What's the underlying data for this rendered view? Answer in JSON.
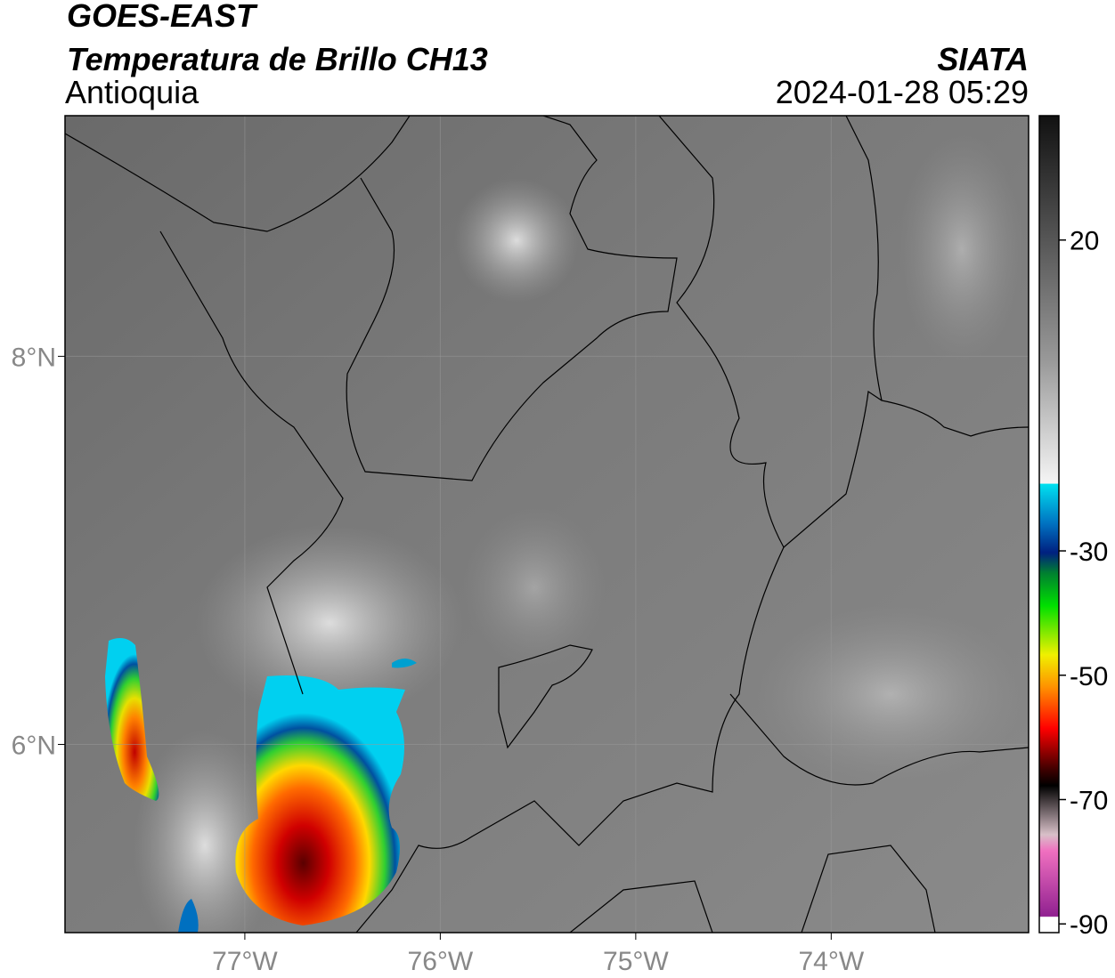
{
  "header": {
    "title": "GOES-EAST",
    "subtitle": "Temperatura de Brillo CH13",
    "region": "Antioquia",
    "source": "SIATA",
    "datetime": "2024-01-28 05:29"
  },
  "map": {
    "lonlim": [
      -77.92,
      -72.99
    ],
    "latlim": [
      5.03,
      9.24
    ],
    "lat_ticks": [
      {
        "value": 8,
        "label": "8°N"
      },
      {
        "value": 6,
        "label": "6°N"
      }
    ],
    "lon_ticks": [
      {
        "value": -77,
        "label": "77°W"
      },
      {
        "value": -76,
        "label": "76°W"
      },
      {
        "value": -75,
        "label": "75°W"
      },
      {
        "value": -74,
        "label": "74°W"
      }
    ]
  },
  "colorbar": {
    "lim": [
      -91.4,
      40
    ],
    "ticks": [
      20,
      -30,
      -50,
      -70,
      -90
    ]
  }
}
